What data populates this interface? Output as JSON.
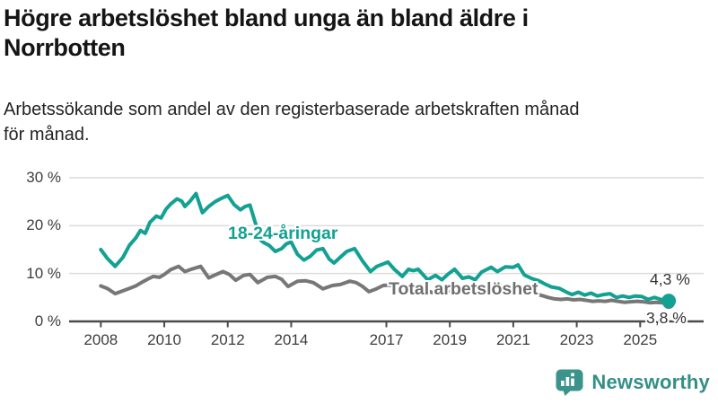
{
  "header": {
    "title": "Högre arbetslöshet bland unga än bland äldre i\nNorrbotten",
    "subtitle": "Arbetssökande som andel av den registerbaserade arbetskraften månad\nför månad."
  },
  "footer": {
    "brand": "Newsworthy"
  },
  "colors": {
    "accent_teal": "#12a192",
    "series_gray": "#777777",
    "axis_line": "#4a4a4a",
    "gridline": "#dcdcdc",
    "tick_text": "#3d3d3d",
    "value_text": "#333333",
    "logo_teal": "#3a948b"
  },
  "chart_data": {
    "type": "line",
    "title": "Högre arbetslöshet bland unga än bland äldre i Norrbotten",
    "subtitle": "Arbetssökande som andel av den registerbaserade arbetskraften månad för månad.",
    "x_unit": "year (monthly data)",
    "x_range_years": [
      2007,
      2027
    ],
    "ylim": [
      0,
      30
    ],
    "y_ticks": [
      0,
      10,
      20,
      30
    ],
    "y_tick_suffix": " %",
    "x_ticks": [
      2008,
      2010,
      2012,
      2014,
      2017,
      2019,
      2021,
      2023,
      2025
    ],
    "grid": "horizontal",
    "legend_position": "inline-labels",
    "series": [
      {
        "name": "Total arbetslöshet",
        "color": "#777777",
        "end_label": "3,8 %",
        "final_value": 3.8,
        "points": [
          [
            2008.0,
            7.4
          ],
          [
            2008.2,
            6.9
          ],
          [
            2008.45,
            5.8
          ],
          [
            2008.7,
            6.4
          ],
          [
            2008.9,
            6.9
          ],
          [
            2009.1,
            7.4
          ],
          [
            2009.3,
            8.2
          ],
          [
            2009.5,
            8.9
          ],
          [
            2009.65,
            9.4
          ],
          [
            2009.85,
            9.2
          ],
          [
            2010.0,
            9.8
          ],
          [
            2010.2,
            10.8
          ],
          [
            2010.45,
            11.5
          ],
          [
            2010.65,
            10.4
          ],
          [
            2010.85,
            10.9
          ],
          [
            2011.0,
            11.2
          ],
          [
            2011.15,
            11.5
          ],
          [
            2011.4,
            9.1
          ],
          [
            2011.6,
            9.7
          ],
          [
            2011.85,
            10.4
          ],
          [
            2012.05,
            9.8
          ],
          [
            2012.25,
            8.6
          ],
          [
            2012.5,
            9.6
          ],
          [
            2012.7,
            9.8
          ],
          [
            2012.95,
            8.1
          ],
          [
            2013.25,
            9.2
          ],
          [
            2013.5,
            9.4
          ],
          [
            2013.7,
            8.8
          ],
          [
            2013.9,
            7.3
          ],
          [
            2014.2,
            8.4
          ],
          [
            2014.45,
            8.5
          ],
          [
            2014.7,
            8.1
          ],
          [
            2015.0,
            6.8
          ],
          [
            2015.3,
            7.5
          ],
          [
            2015.55,
            7.7
          ],
          [
            2015.85,
            8.4
          ],
          [
            2016.05,
            8.1
          ],
          [
            2016.25,
            7.3
          ],
          [
            2016.45,
            6.2
          ],
          [
            2016.65,
            6.7
          ],
          [
            2016.9,
            7.5
          ],
          [
            2017.1,
            7.6
          ],
          [
            2017.4,
            6.9
          ],
          [
            2017.65,
            6.5
          ],
          [
            2017.9,
            6.9
          ],
          [
            2018.15,
            6.8
          ],
          [
            2018.45,
            6.0
          ],
          [
            2018.7,
            6.2
          ],
          [
            2019.0,
            6.4
          ],
          [
            2019.3,
            5.8
          ],
          [
            2019.6,
            5.9
          ],
          [
            2019.9,
            6.3
          ],
          [
            2020.2,
            7.2
          ],
          [
            2020.5,
            7.6
          ],
          [
            2020.8,
            7.3
          ],
          [
            2021.05,
            7.1
          ],
          [
            2021.3,
            6.6
          ],
          [
            2021.6,
            6.0
          ],
          [
            2021.9,
            5.4
          ],
          [
            2022.1,
            5.0
          ],
          [
            2022.3,
            4.7
          ],
          [
            2022.5,
            4.6
          ],
          [
            2022.7,
            4.7
          ],
          [
            2022.9,
            4.5
          ],
          [
            2023.1,
            4.6
          ],
          [
            2023.3,
            4.4
          ],
          [
            2023.5,
            4.2
          ],
          [
            2023.7,
            4.3
          ],
          [
            2023.9,
            4.2
          ],
          [
            2024.1,
            4.4
          ],
          [
            2024.3,
            4.2
          ],
          [
            2024.5,
            4.0
          ],
          [
            2024.7,
            4.1
          ],
          [
            2024.9,
            4.2
          ],
          [
            2025.1,
            4.1
          ],
          [
            2025.3,
            3.9
          ],
          [
            2025.5,
            4.0
          ],
          [
            2025.7,
            3.9
          ],
          [
            2025.9,
            3.8
          ]
        ]
      },
      {
        "name": "18-24-åringar",
        "color": "#12a192",
        "end_label": "4,3 %",
        "final_value": 4.3,
        "points": [
          [
            2008.0,
            15.0
          ],
          [
            2008.2,
            13.2
          ],
          [
            2008.45,
            11.5
          ],
          [
            2008.7,
            13.4
          ],
          [
            2008.9,
            15.9
          ],
          [
            2009.1,
            17.4
          ],
          [
            2009.25,
            19.0
          ],
          [
            2009.4,
            18.4
          ],
          [
            2009.55,
            20.7
          ],
          [
            2009.75,
            22.0
          ],
          [
            2009.9,
            21.6
          ],
          [
            2010.05,
            23.4
          ],
          [
            2010.2,
            24.5
          ],
          [
            2010.4,
            25.6
          ],
          [
            2010.55,
            25.1
          ],
          [
            2010.65,
            24.0
          ],
          [
            2010.8,
            25.0
          ],
          [
            2011.0,
            26.7
          ],
          [
            2011.2,
            22.7
          ],
          [
            2011.4,
            24.0
          ],
          [
            2011.6,
            25.0
          ],
          [
            2011.8,
            25.7
          ],
          [
            2012.0,
            26.3
          ],
          [
            2012.2,
            24.4
          ],
          [
            2012.4,
            23.3
          ],
          [
            2012.55,
            24.0
          ],
          [
            2012.7,
            24.3
          ],
          [
            2012.85,
            21.0
          ],
          [
            2013.05,
            16.9
          ],
          [
            2013.15,
            16.4
          ],
          [
            2013.3,
            15.9
          ],
          [
            2013.5,
            14.6
          ],
          [
            2013.7,
            15.2
          ],
          [
            2013.85,
            16.2
          ],
          [
            2014.0,
            16.6
          ],
          [
            2014.2,
            14.0
          ],
          [
            2014.4,
            12.8
          ],
          [
            2014.6,
            13.6
          ],
          [
            2014.8,
            14.9
          ],
          [
            2015.0,
            15.2
          ],
          [
            2015.2,
            13.0
          ],
          [
            2015.35,
            12.2
          ],
          [
            2015.55,
            13.4
          ],
          [
            2015.75,
            14.6
          ],
          [
            2016.0,
            15.2
          ],
          [
            2016.25,
            12.6
          ],
          [
            2016.5,
            10.4
          ],
          [
            2016.7,
            11.5
          ],
          [
            2016.9,
            12.0
          ],
          [
            2017.05,
            12.4
          ],
          [
            2017.25,
            10.9
          ],
          [
            2017.5,
            9.4
          ],
          [
            2017.7,
            10.9
          ],
          [
            2017.85,
            10.6
          ],
          [
            2018.0,
            10.9
          ],
          [
            2018.3,
            8.7
          ],
          [
            2018.55,
            9.6
          ],
          [
            2018.75,
            8.7
          ],
          [
            2018.95,
            9.9
          ],
          [
            2019.15,
            10.9
          ],
          [
            2019.4,
            9.0
          ],
          [
            2019.6,
            9.3
          ],
          [
            2019.8,
            8.7
          ],
          [
            2020.0,
            10.3
          ],
          [
            2020.3,
            11.3
          ],
          [
            2020.5,
            10.4
          ],
          [
            2020.75,
            11.4
          ],
          [
            2021.0,
            11.3
          ],
          [
            2021.15,
            11.8
          ],
          [
            2021.35,
            9.7
          ],
          [
            2021.6,
            8.9
          ],
          [
            2021.8,
            8.5
          ],
          [
            2022.0,
            7.8
          ],
          [
            2022.2,
            7.2
          ],
          [
            2022.45,
            6.9
          ],
          [
            2022.65,
            6.2
          ],
          [
            2022.85,
            5.6
          ],
          [
            2023.05,
            6.1
          ],
          [
            2023.25,
            5.5
          ],
          [
            2023.45,
            5.9
          ],
          [
            2023.65,
            5.3
          ],
          [
            2023.85,
            5.6
          ],
          [
            2024.05,
            5.8
          ],
          [
            2024.25,
            5.0
          ],
          [
            2024.45,
            5.3
          ],
          [
            2024.65,
            5.0
          ],
          [
            2024.85,
            5.3
          ],
          [
            2025.05,
            5.2
          ],
          [
            2025.25,
            4.6
          ],
          [
            2025.45,
            5.0
          ],
          [
            2025.65,
            4.6
          ],
          [
            2025.9,
            4.3
          ]
        ]
      }
    ]
  }
}
